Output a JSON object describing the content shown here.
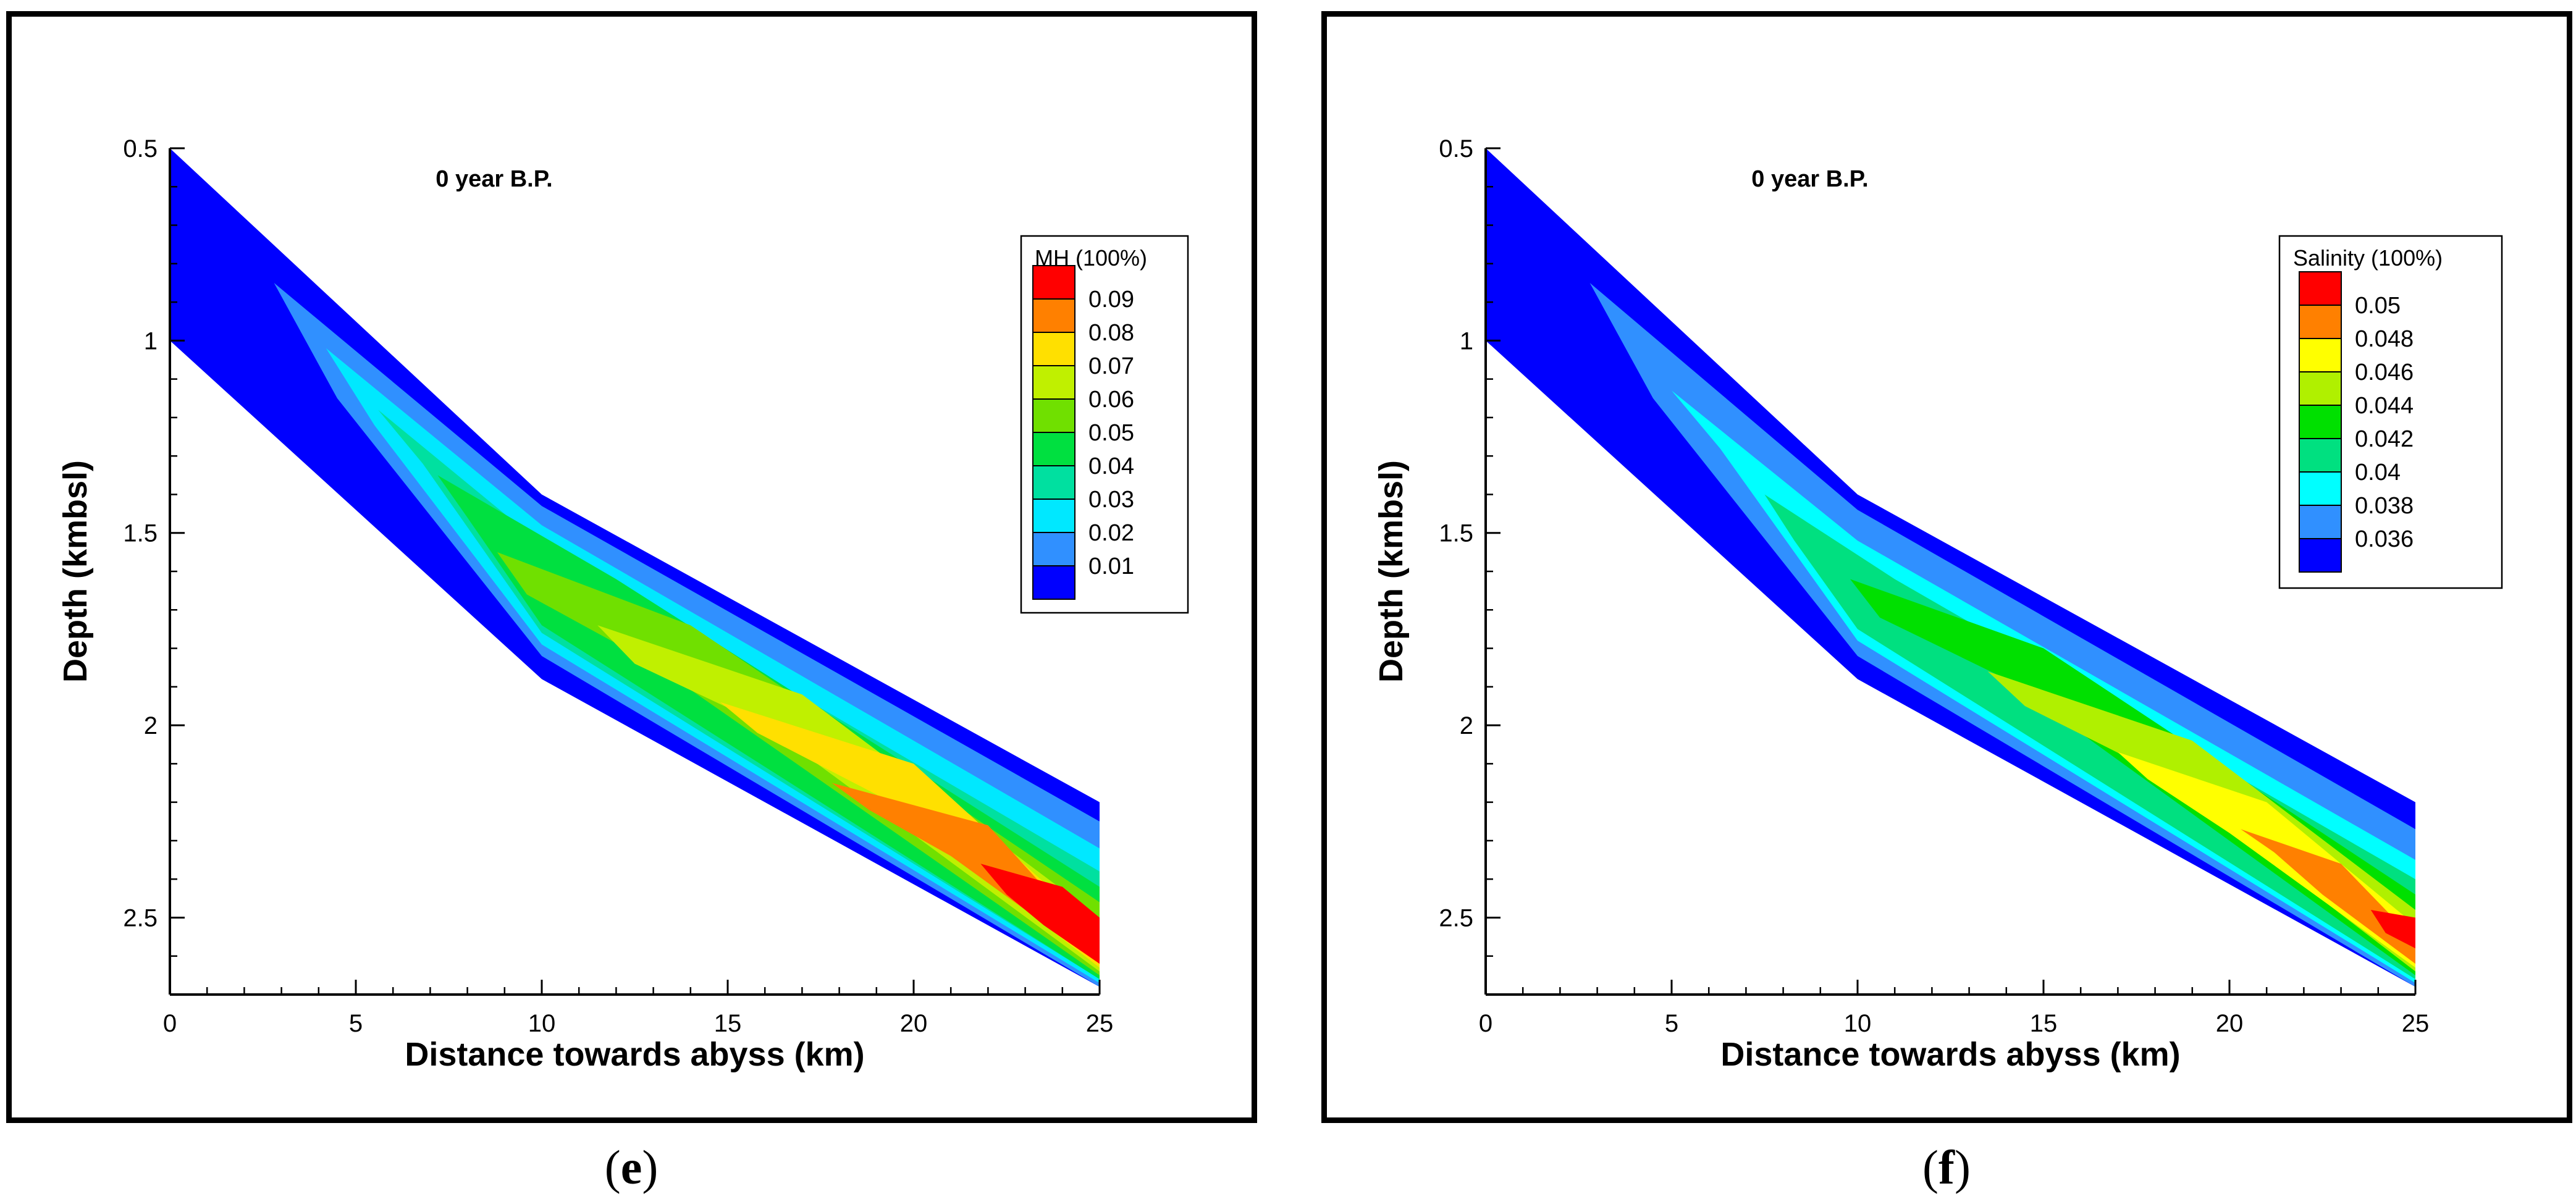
{
  "chart_data": [
    {
      "type": "contour",
      "panel_label": "e",
      "title": "0 year B.P.",
      "xlabel": "Distance towards abyss (km)",
      "ylabel": "Depth (kmbsl)",
      "xlim": [
        0,
        25
      ],
      "ylim": [
        0.5,
        2.7
      ],
      "y_inverted": true,
      "x_ticks": [
        "0",
        "5",
        "10",
        "15",
        "20",
        "25"
      ],
      "y_ticks": [
        "0.5",
        "1",
        "1.5",
        "2",
        "2.5"
      ],
      "legend_title": "MH (100%)",
      "legend_levels": [
        "0.09",
        "0.08",
        "0.07",
        "0.06",
        "0.05",
        "0.04",
        "0.03",
        "0.02",
        "0.01"
      ],
      "legend_colors": [
        "#ff0000",
        "#ff8000",
        "#ffe000",
        "#c0f000",
        "#70e000",
        "#00e040",
        "#00e0a0",
        "#00e8ff",
        "#3090ff",
        "#0000ff"
      ],
      "legend_position": "upper-right",
      "domain_outline": {
        "top": [
          [
            0,
            0.5
          ],
          [
            10,
            1.4
          ],
          [
            25,
            2.2
          ]
        ],
        "bottom": [
          [
            0,
            1.0
          ],
          [
            10,
            1.88
          ],
          [
            25,
            2.68
          ]
        ]
      }
    },
    {
      "type": "contour",
      "panel_label": "f",
      "title": "0 year B.P.",
      "xlabel": "Distance towards abyss (km)",
      "ylabel": "Depth (kmbsl)",
      "xlim": [
        0,
        25
      ],
      "ylim": [
        0.5,
        2.7
      ],
      "y_inverted": true,
      "x_ticks": [
        "0",
        "5",
        "10",
        "15",
        "20",
        "25"
      ],
      "y_ticks": [
        "0.5",
        "1",
        "1.5",
        "2",
        "2.5"
      ],
      "legend_title": "Salinity (100%)",
      "legend_levels": [
        "0.05",
        "0.048",
        "0.046",
        "0.044",
        "0.042",
        "0.04",
        "0.038",
        "0.036"
      ],
      "legend_colors": [
        "#ff0000",
        "#ff8000",
        "#ffff00",
        "#b0f000",
        "#00e000",
        "#00e080",
        "#00ffff",
        "#3090ff",
        "#0000ff"
      ],
      "legend_position": "upper-right",
      "domain_outline": {
        "top": [
          [
            0,
            0.5
          ],
          [
            10,
            1.4
          ],
          [
            25,
            2.2
          ]
        ],
        "bottom": [
          [
            0,
            1.0
          ],
          [
            10,
            1.88
          ],
          [
            25,
            2.68
          ]
        ]
      }
    }
  ]
}
